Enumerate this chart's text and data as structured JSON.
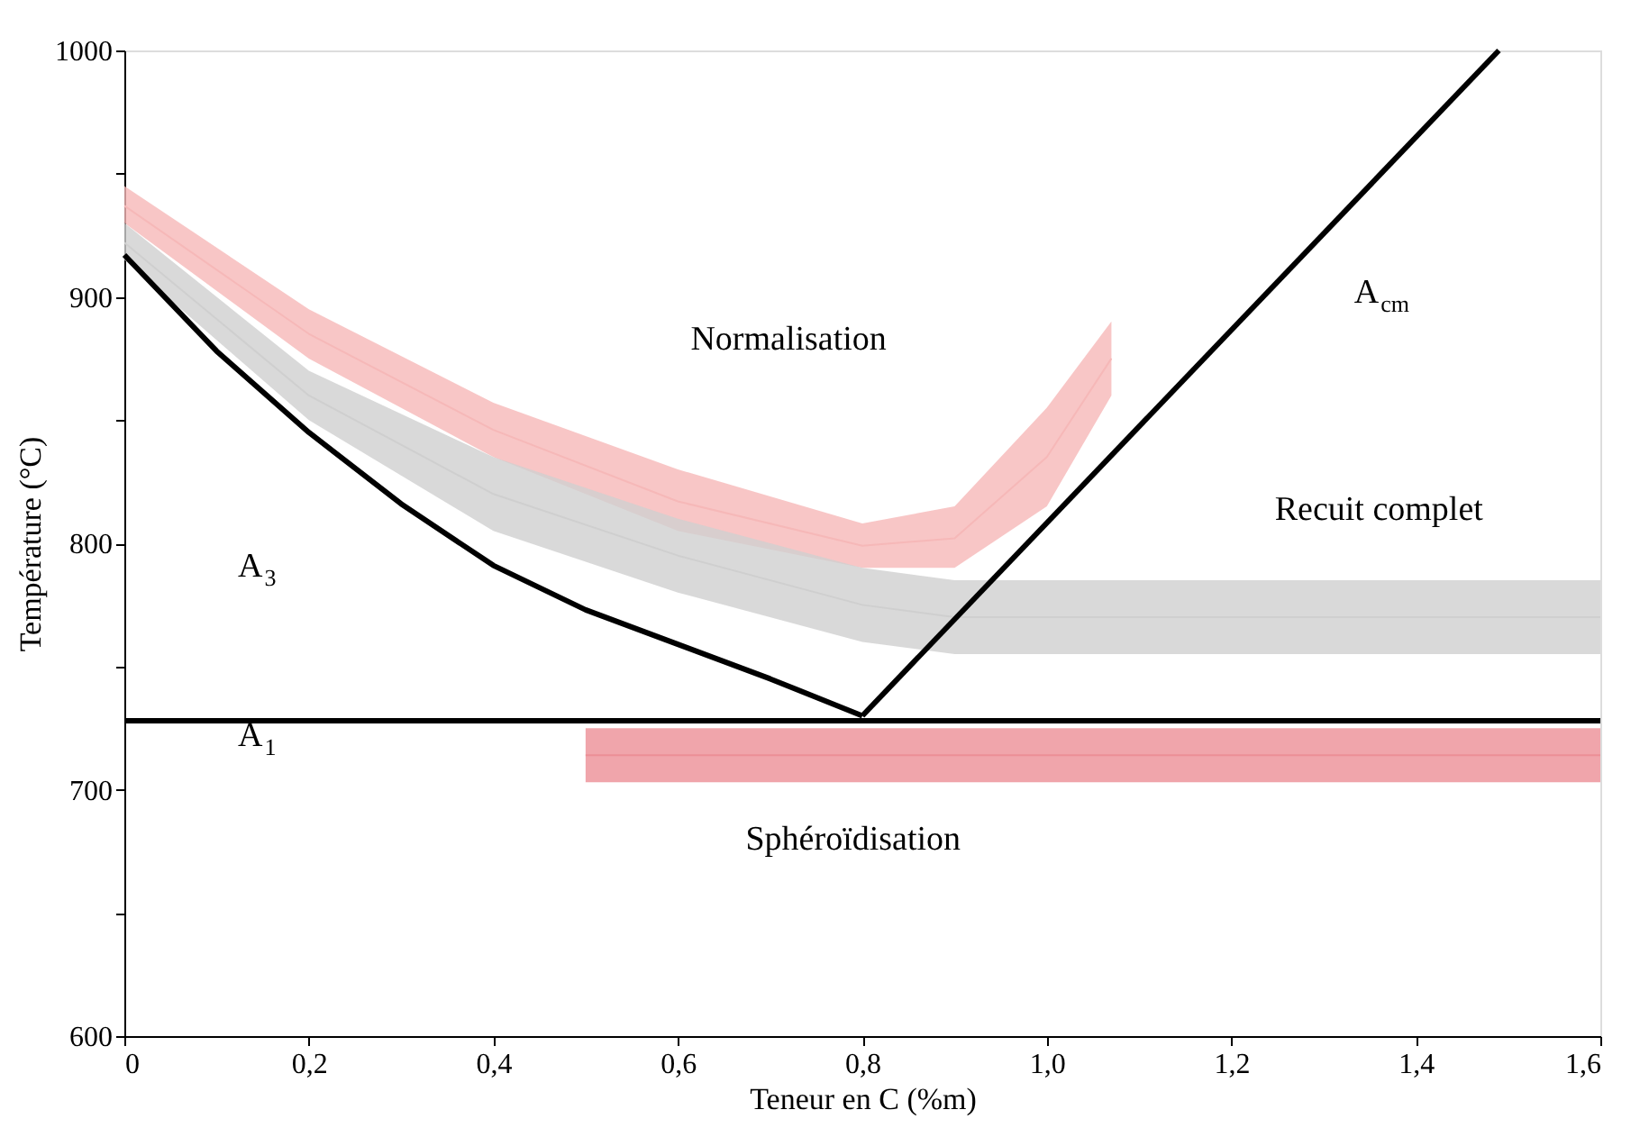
{
  "chart_data": {
    "type": "line",
    "xlabel": "Teneur en C (%m)",
    "ylabel": "Température (°C)",
    "xlim": [
      0,
      1.6
    ],
    "ylim": [
      600,
      1000
    ],
    "xticks": [
      0,
      {
        "value": 0.2,
        "label": "0,2"
      },
      {
        "value": 0.4,
        "label": "0,4"
      },
      {
        "value": 0.6,
        "label": "0,6"
      },
      {
        "value": 0.8,
        "label": "0,8"
      },
      {
        "value": 1.0,
        "label": "1,0"
      },
      {
        "value": 1.2,
        "label": "1,2"
      },
      {
        "value": 1.4,
        "label": "1,4"
      },
      {
        "value": 1.6,
        "label": "1,6"
      }
    ],
    "yticks": [
      600,
      {
        "value": 650,
        "label": null
      },
      700,
      {
        "value": 750,
        "label": null
      },
      800,
      {
        "value": 850,
        "label": null
      },
      900,
      {
        "value": 950,
        "label": null
      },
      1000
    ],
    "series": [
      {
        "type": "line",
        "color": "#f6b8b8",
        "x": [
          0,
          0.2,
          0.4,
          0.6,
          0.8,
          0.9,
          1.0,
          1.07
        ],
        "lower": [
          930,
          875,
          835,
          805,
          790,
          790,
          815,
          860
        ],
        "upper": [
          945,
          895,
          857,
          830,
          808,
          815,
          855,
          890
        ],
        "values": [
          937,
          885,
          846,
          817,
          799,
          802,
          835,
          875
        ]
      },
      {
        "type": "line",
        "color": "#cfcfcf",
        "x": [
          0,
          0.2,
          0.4,
          0.6,
          0.8,
          0.9,
          1.6
        ],
        "lower": [
          915,
          850,
          805,
          780,
          760,
          755,
          755
        ],
        "upper": [
          930,
          870,
          835,
          810,
          790,
          785,
          785
        ],
        "values": [
          922,
          860,
          820,
          795,
          775,
          770,
          770
        ]
      },
      {
        "type": "line",
        "color": "#ec8f96",
        "x": [
          0.5,
          1.6
        ],
        "lower": [
          703,
          703
        ],
        "upper": [
          725,
          725
        ],
        "values": [
          714,
          714
        ]
      },
      {
        "color": "#000000",
        "x": [
          0,
          0.1,
          0.2,
          0.3,
          0.4,
          0.5,
          0.6,
          0.7,
          0.8
        ],
        "values": [
          917,
          878,
          845,
          816,
          791,
          773,
          759,
          745,
          730
        ]
      },
      {
        "color": "#000000",
        "x": [
          0.8,
          1.49
        ],
        "values": [
          730,
          1000
        ]
      },
      {
        "color": "#000000",
        "x": [
          0,
          1.6
        ],
        "values": [
          728,
          728
        ]
      }
    ],
    "annotations": [
      "Normalisation",
      "Recuit complet",
      "Sphéroïdisation",
      "A$_{3}$",
      "A$_{cm}$",
      "A$_{1}$"
    ]
  }
}
